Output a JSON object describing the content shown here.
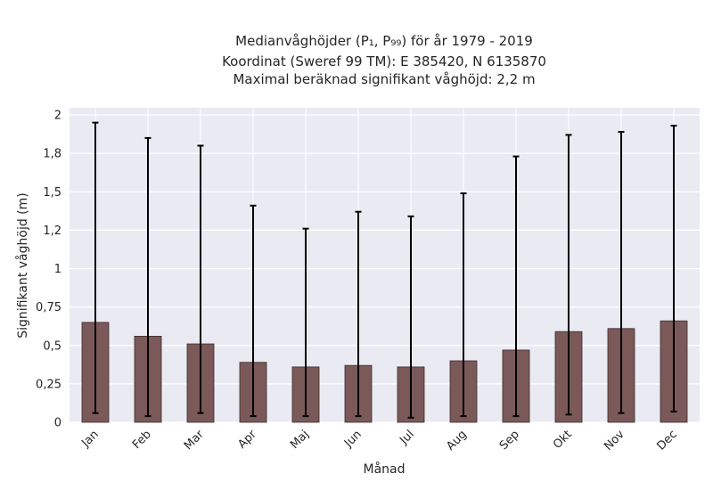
{
  "chart_data": {
    "type": "bar",
    "title_lines": [
      "Medianvåghöjder (P₁, P₉₉) för år 1979 - 2019",
      "Koordinat (Sweref 99 TM): E 385420, N 6135870",
      "Maximal beräknad signifikant våghöjd: 2,2 m"
    ],
    "xlabel": "Månad",
    "ylabel": "Signifikant våghöjd (m)",
    "ylim": [
      0,
      2.0
    ],
    "yticks": [
      0,
      0.25,
      0.5,
      0.75,
      1.0,
      1.25,
      1.5,
      1.75,
      2.0
    ],
    "ytick_labels": [
      "0",
      "0,25",
      "0,5",
      "0,75",
      "1",
      "1,2",
      "1,5",
      "1,8",
      "2"
    ],
    "categories": [
      "Jan",
      "Feb",
      "Mar",
      "Apr",
      "Maj",
      "Jun",
      "Jul",
      "Aug",
      "Sep",
      "Okt",
      "Nov",
      "Dec"
    ],
    "values": [
      0.65,
      0.56,
      0.51,
      0.39,
      0.36,
      0.37,
      0.36,
      0.4,
      0.47,
      0.59,
      0.61,
      0.66
    ],
    "p1": [
      0.06,
      0.04,
      0.06,
      0.04,
      0.04,
      0.04,
      0.03,
      0.04,
      0.04,
      0.05,
      0.06,
      0.07
    ],
    "p99": [
      1.95,
      1.85,
      1.8,
      1.41,
      1.26,
      1.37,
      1.34,
      1.49,
      1.73,
      1.87,
      1.89,
      1.93
    ],
    "bar_color": "#7b5959",
    "plot_bg": "#eaeaf2",
    "grid": true
  }
}
